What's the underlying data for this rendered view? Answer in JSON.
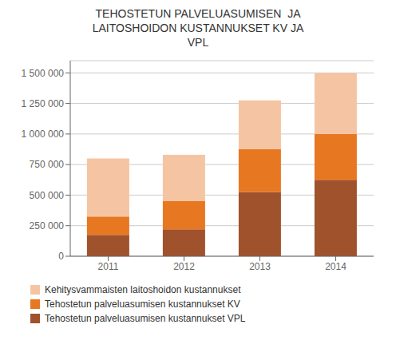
{
  "chart_data": {
    "type": "bar",
    "stacked": true,
    "title": "TEHOSTETUN PALVELUASUMISEN  JA\nLAITOSHOIDON KUSTANNUKSET KV JA\nVPL",
    "categories": [
      "2011",
      "2012",
      "2013",
      "2014"
    ],
    "series": [
      {
        "name": "Tehostetun palveluasumisen kustannukset VPL",
        "color": "#A0522D",
        "values": [
          175000,
          220000,
          525000,
          625000
        ]
      },
      {
        "name": "Tehostetun palveluasumisen kustannukset KV",
        "color": "#E87722",
        "values": [
          150000,
          230000,
          350000,
          375000
        ]
      },
      {
        "name": "Kehitysvammaisten laitoshoidon kustannukset",
        "color": "#F5C5A3",
        "values": [
          475000,
          380000,
          400000,
          500000
        ]
      }
    ],
    "ylim": [
      0,
      1600000
    ],
    "yticks": [
      0,
      {
        "value": 250000,
        "label": "250 000"
      },
      {
        "value": 500000,
        "label": "500 000"
      },
      {
        "value": 750000,
        "label": "750 000"
      },
      {
        "value": 1000000,
        "label": "1 000 000"
      },
      {
        "value": 1250000,
        "label": "1 250 000"
      },
      {
        "value": 1500000,
        "label": "1 500 000"
      }
    ],
    "grid": true,
    "legend": "lower left"
  }
}
